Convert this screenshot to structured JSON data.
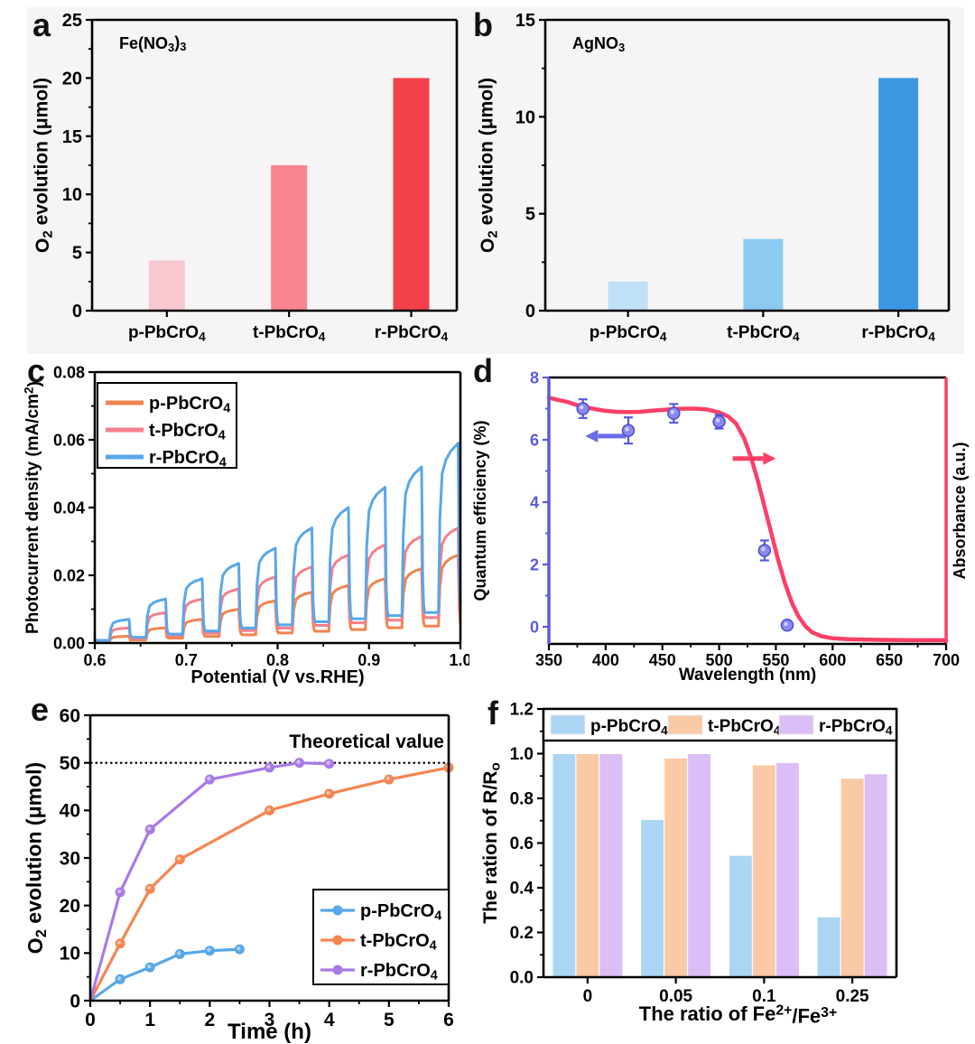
{
  "figure": {
    "background": "#ffffff",
    "panel_card_color": "#f6f4f4"
  },
  "chart_data": [
    {
      "id": "a",
      "letter": "a",
      "type": "bar",
      "annotation": "Fe(NO_{3})_{3}",
      "ylabel": "O_{2} evolution (μmol)",
      "categories": [
        "p-PbCrO_{4}",
        "t-PbCrO_{4}",
        "r-PbCrO_{4}"
      ],
      "values": [
        4.3,
        12.5,
        20.0
      ],
      "bar_colors": [
        "#f9c7cf",
        "#f9858e",
        "#f2414a"
      ],
      "ylim": [
        0,
        25
      ],
      "yticks": [
        0,
        5,
        10,
        15,
        20,
        25
      ]
    },
    {
      "id": "b",
      "letter": "b",
      "type": "bar",
      "annotation": "AgNO_{3}",
      "ylabel": "O_{2} evolution (μmol)",
      "categories": [
        "p-PbCrO_{4}",
        "t-PbCrO_{4}",
        "r-PbCrO_{4}"
      ],
      "values": [
        1.5,
        3.7,
        12.0
      ],
      "bar_colors": [
        "#c0e0f8",
        "#8ccaf0",
        "#3c97e3"
      ],
      "ylim": [
        0,
        15
      ],
      "yticks": [
        0,
        5,
        10,
        15
      ]
    },
    {
      "id": "c",
      "letter": "c",
      "type": "line",
      "variant": "chopped-photocurrent",
      "xlabel": "Potential (V vs.RHE)",
      "ylabel": "Photocurrent density (mA/cm^{2})",
      "xlim": [
        0.6,
        1.0
      ],
      "ylim": [
        0,
        0.08
      ],
      "xticks": [
        0.6,
        0.7,
        0.8,
        0.9,
        1.0
      ],
      "yticks": [
        0,
        0.02,
        0.04,
        0.06,
        0.08
      ],
      "cycle_start": 0.6,
      "cycle_width": 0.04,
      "series": [
        {
          "name": "p-PbCrO_{4}",
          "color": "#f2844f",
          "base_start": 0.0004,
          "base_end": 0.005,
          "peaks": [
            0.002,
            0.0045,
            0.007,
            0.01,
            0.0125,
            0.015,
            0.017,
            0.019,
            0.022,
            0.026
          ]
        },
        {
          "name": "t-PbCrO_{4}",
          "color": "#f57f8b",
          "base_start": 0.0006,
          "base_end": 0.0075,
          "peaks": [
            0.0045,
            0.009,
            0.013,
            0.016,
            0.0195,
            0.0225,
            0.026,
            0.029,
            0.0315,
            0.034
          ]
        },
        {
          "name": "r-PbCrO_{4}",
          "color": "#58a7ea",
          "base_start": 0.0008,
          "base_end": 0.009,
          "peaks": [
            0.007,
            0.013,
            0.019,
            0.0235,
            0.028,
            0.034,
            0.04,
            0.046,
            0.052,
            0.059
          ]
        }
      ],
      "legend_position": "top-left"
    },
    {
      "id": "d",
      "letter": "d",
      "type": "line",
      "variant": "dual-axis",
      "xlabel": "Wavelength (nm)",
      "ylabel_left": "Quantum efficiency (%)",
      "ylabel_right": "Absorbance (a.u.)",
      "xlim": [
        350,
        700
      ],
      "ylim": [
        -0.55,
        8
      ],
      "xticks": [
        350,
        400,
        450,
        500,
        550,
        600,
        650,
        700
      ],
      "yticks": [
        0,
        2,
        4,
        6,
        8
      ],
      "left_axis_color": "#5b5be0",
      "qe_marker_color": "#8a8aee",
      "absorbance_color": "#fb3f66",
      "qe_points": [
        {
          "x": 380,
          "y": 7.0,
          "err": 0.3
        },
        {
          "x": 420,
          "y": 6.3,
          "err": 0.42
        },
        {
          "x": 460,
          "y": 6.85,
          "err": 0.3
        },
        {
          "x": 500,
          "y": 6.58,
          "err": 0.22
        },
        {
          "x": 540,
          "y": 2.45,
          "err": 0.32
        },
        {
          "x": 560,
          "y": 0.05,
          "err": 0.12
        }
      ],
      "absorbance_curve": [
        [
          350,
          7.35
        ],
        [
          358,
          7.28
        ],
        [
          366,
          7.22
        ],
        [
          374,
          7.12
        ],
        [
          382,
          7.05
        ],
        [
          390,
          6.99
        ],
        [
          400,
          6.93
        ],
        [
          410,
          6.9
        ],
        [
          420,
          6.89
        ],
        [
          430,
          6.9
        ],
        [
          440,
          6.93
        ],
        [
          450,
          6.96
        ],
        [
          460,
          6.99
        ],
        [
          470,
          7.0
        ],
        [
          480,
          7.0
        ],
        [
          490,
          6.97
        ],
        [
          500,
          6.88
        ],
        [
          508,
          6.75
        ],
        [
          515,
          6.52
        ],
        [
          522,
          6.05
        ],
        [
          528,
          5.45
        ],
        [
          534,
          4.7
        ],
        [
          540,
          3.85
        ],
        [
          546,
          3.0
        ],
        [
          552,
          2.15
        ],
        [
          558,
          1.4
        ],
        [
          564,
          0.78
        ],
        [
          570,
          0.33
        ],
        [
          576,
          0.02
        ],
        [
          582,
          -0.18
        ],
        [
          590,
          -0.3
        ],
        [
          600,
          -0.37
        ],
        [
          615,
          -0.4
        ],
        [
          640,
          -0.42
        ],
        [
          670,
          -0.43
        ],
        [
          700,
          -0.43
        ]
      ],
      "arrows": [
        {
          "from": [
            418,
            6.12
          ],
          "to": [
            382,
            6.12
          ],
          "color": "#6b6be8"
        },
        {
          "from": [
            512,
            5.4
          ],
          "to": [
            550,
            5.4
          ],
          "color": "#fb3f66"
        }
      ]
    },
    {
      "id": "e",
      "letter": "e",
      "type": "line",
      "variant": "kinetics",
      "xlabel": "Time (h)",
      "ylabel": "O_{2} evolution (μmol)",
      "xlim": [
        0,
        6
      ],
      "ylim": [
        0,
        60
      ],
      "xticks": [
        0,
        1,
        2,
        3,
        4,
        5,
        6
      ],
      "yticks": [
        0,
        10,
        20,
        30,
        40,
        50,
        60
      ],
      "hline": {
        "y": 50,
        "label": "Theoretical value"
      },
      "series": [
        {
          "name": "p-PbCrO_{4}",
          "color": "#58a7ea",
          "points": [
            [
              0,
              0
            ],
            [
              0.5,
              4.5
            ],
            [
              1,
              7
            ],
            [
              1.5,
              9.8
            ],
            [
              2,
              10.5
            ],
            [
              2.5,
              10.8
            ]
          ]
        },
        {
          "name": "t-PbCrO_{4}",
          "color": "#f58551",
          "points": [
            [
              0,
              0
            ],
            [
              0.5,
              12
            ],
            [
              1,
              23.5
            ],
            [
              1.5,
              29.7
            ],
            [
              3,
              40
            ],
            [
              4,
              43.5
            ],
            [
              5,
              46.5
            ],
            [
              6,
              49
            ]
          ]
        },
        {
          "name": "r-PbCrO_{4}",
          "color": "#a97ae6",
          "points": [
            [
              0,
              0
            ],
            [
              0.5,
              22.8
            ],
            [
              1,
              36
            ],
            [
              2,
              46.5
            ],
            [
              3,
              49
            ],
            [
              3.5,
              50
            ],
            [
              4,
              49.8
            ]
          ]
        }
      ],
      "legend_position": "bottom-right"
    },
    {
      "id": "f",
      "letter": "f",
      "type": "bar",
      "variant": "grouped",
      "xlabel": "The ratio of Fe^{2+}/Fe^{3+}",
      "ylabel": "The ration of R/R_{o}",
      "categories": [
        "0",
        "0.05",
        "0.1",
        "0.25"
      ],
      "ylim": [
        0,
        1.2
      ],
      "yticks": [
        0,
        0.2,
        0.4,
        0.6,
        0.8,
        1.0,
        1.2
      ],
      "series": [
        {
          "name": "p-PbCrO_{4}",
          "color": "#aad6f4",
          "values": [
            1.0,
            0.705,
            0.545,
            0.27
          ]
        },
        {
          "name": "t-PbCrO_{4}",
          "color": "#fac9a6",
          "values": [
            1.0,
            0.98,
            0.95,
            0.89
          ]
        },
        {
          "name": "r-PbCrO_{4}",
          "color": "#dcbef6",
          "values": [
            1.0,
            1.0,
            0.96,
            0.91
          ]
        }
      ],
      "legend_position": "top-strip"
    }
  ]
}
